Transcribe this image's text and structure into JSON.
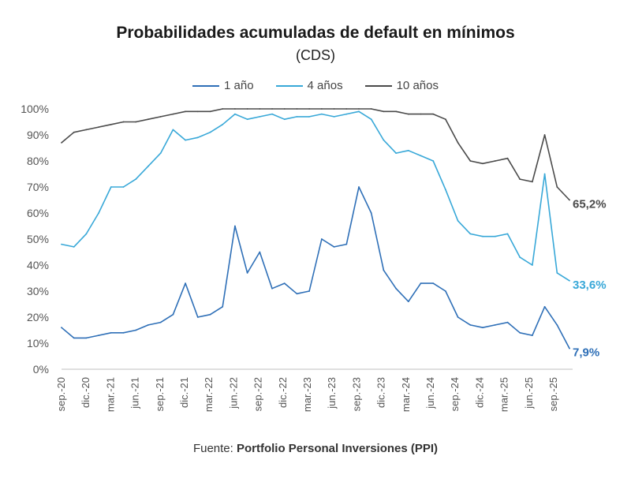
{
  "chart_data": {
    "type": "line",
    "title": "Probabilidades acumuladas de default en mínimos",
    "subtitle": "(CDS)",
    "ylim": [
      0,
      100
    ],
    "yticks": [
      "0%",
      "10%",
      "20%",
      "30%",
      "40%",
      "50%",
      "60%",
      "70%",
      "80%",
      "90%",
      "100%"
    ],
    "xticks": [
      "sep.-20",
      "dic.-20",
      "mar.-21",
      "jun.-21",
      "sep.-21",
      "dic.-21",
      "mar.-22",
      "jun.-22",
      "sep.-22",
      "dic.-22",
      "mar.-23",
      "jun.-23",
      "sep.-23",
      "dic.-23",
      "mar.-24",
      "jun.-24",
      "sep.-24",
      "dic.-24",
      "mar.-25",
      "jun.-25",
      "sep.-25"
    ],
    "x": [
      "sep.-20",
      "nov.-20",
      "dic.-20",
      "feb.-21",
      "mar.-21",
      "may.-21",
      "jun.-21",
      "ago.-21",
      "sep.-21",
      "nov.-21",
      "dic.-21",
      "feb.-22",
      "mar.-22",
      "may.-22",
      "jun.-22",
      "ago.-22",
      "sep.-22",
      "nov.-22",
      "dic.-22",
      "feb.-23",
      "mar.-23",
      "may.-23",
      "jun.-23",
      "ago.-23",
      "sep.-23",
      "nov.-23",
      "dic.-23",
      "feb.-24",
      "mar.-24",
      "may.-24",
      "jun.-24",
      "ago.-24",
      "sep.-24",
      "nov.-24",
      "dic.-24",
      "feb.-25",
      "mar.-25",
      "may.-25",
      "jun.-25",
      "ago.-25",
      "sep.-25",
      "nov.-25"
    ],
    "grid": false,
    "legend_position": "top",
    "series": [
      {
        "name": "1 año",
        "color": "#2e6fb7",
        "end_label": "7,9%",
        "values": [
          16,
          12,
          12,
          13,
          14,
          14,
          15,
          17,
          18,
          21,
          33,
          20,
          21,
          24,
          55,
          37,
          45,
          31,
          33,
          29,
          30,
          50,
          47,
          48,
          70,
          60,
          38,
          31,
          26,
          33,
          33,
          30,
          20,
          17,
          16,
          17,
          18,
          14,
          13,
          24,
          17,
          8
        ]
      },
      {
        "name": "4 años",
        "color": "#38a8d8",
        "end_label": "33,6%",
        "values": [
          48,
          47,
          52,
          60,
          70,
          70,
          73,
          78,
          83,
          92,
          88,
          89,
          91,
          94,
          98,
          96,
          97,
          98,
          96,
          97,
          97,
          98,
          97,
          98,
          99,
          96,
          88,
          83,
          84,
          82,
          80,
          69,
          57,
          52,
          51,
          51,
          52,
          43,
          40,
          75,
          37,
          34
        ]
      },
      {
        "name": "10 años",
        "color": "#4a4a4a",
        "end_label": "65,2%",
        "values": [
          87,
          91,
          92,
          93,
          94,
          95,
          95,
          96,
          97,
          98,
          99,
          99,
          99,
          100,
          100,
          100,
          100,
          100,
          100,
          100,
          100,
          100,
          100,
          100,
          100,
          100,
          99,
          99,
          98,
          98,
          98,
          96,
          87,
          80,
          79,
          80,
          81,
          73,
          72,
          90,
          70,
          65
        ]
      }
    ]
  },
  "source": {
    "prefix": "Fuente:",
    "name": "Portfolio Personal Inversiones (PPI)"
  }
}
